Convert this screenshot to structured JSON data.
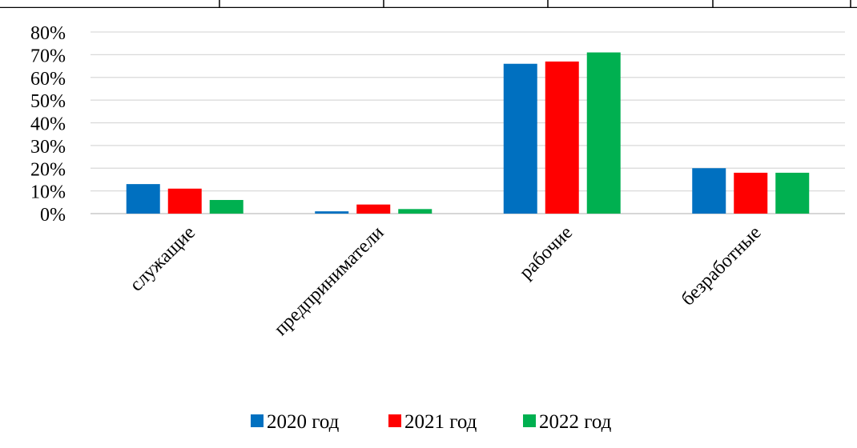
{
  "chart_data": {
    "type": "bar",
    "categories": [
      "служащие",
      "предприниматели",
      "рабочие",
      "безработные"
    ],
    "series": [
      {
        "name": "2020 год",
        "color": "#0070C0",
        "values": [
          13,
          1,
          66,
          20
        ]
      },
      {
        "name": "2021 год",
        "color": "#FF0000",
        "values": [
          11,
          4,
          67,
          18
        ]
      },
      {
        "name": "2022 год",
        "color": "#00B050",
        "values": [
          6,
          2,
          71,
          18
        ]
      }
    ],
    "y_ticks": [
      "0%",
      "10%",
      "20%",
      "30%",
      "40%",
      "50%",
      "60%",
      "70%",
      "80%"
    ],
    "ylim": [
      0,
      80
    ],
    "grid": true,
    "legend_position": "bottom"
  }
}
